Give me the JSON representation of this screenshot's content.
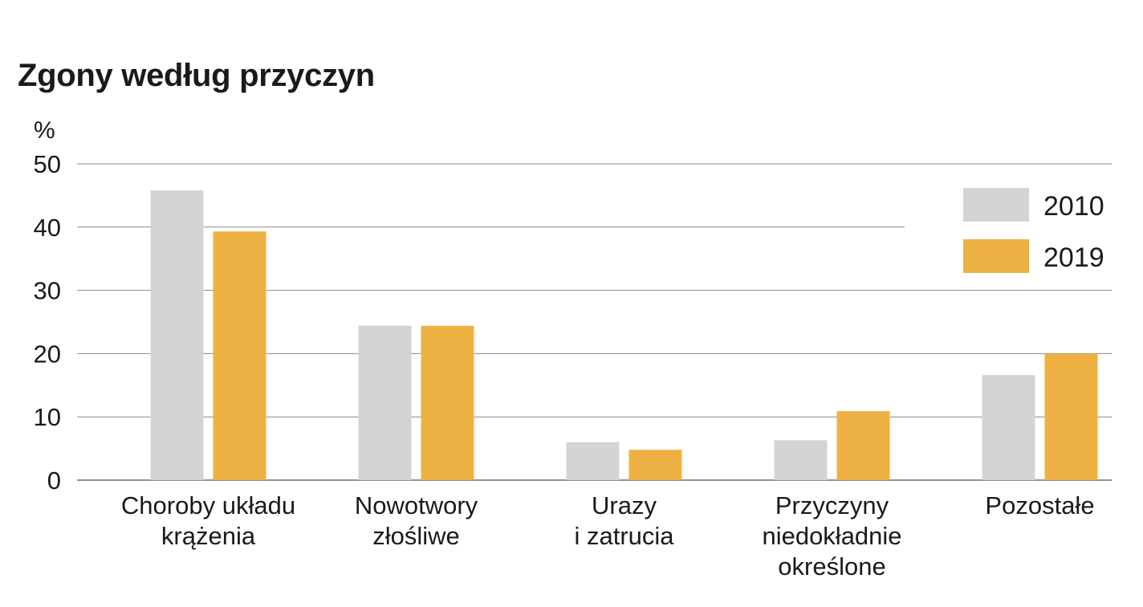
{
  "chart_data": {
    "type": "bar",
    "title": "Zgony według przyczyn",
    "ylabel": "%",
    "xlabel": "",
    "ylim": [
      0,
      50
    ],
    "yticks": [
      0,
      10,
      20,
      30,
      40,
      50
    ],
    "grid": true,
    "legend_position": "top-right",
    "categories": [
      [
        "Choroby układu",
        "krążenia"
      ],
      [
        "Nowotwory",
        "złośliwe"
      ],
      [
        "Urazy",
        "i zatrucia"
      ],
      [
        "Przyczyny",
        "niedokładnie",
        "określone"
      ],
      [
        "Pozostałe"
      ]
    ],
    "series": [
      {
        "name": "2010",
        "color": "#d4d4d6",
        "values": [
          45.8,
          24.4,
          6.0,
          6.3,
          16.6
        ]
      },
      {
        "name": "2019",
        "color": "#eeb143",
        "values": [
          39.3,
          24.4,
          4.8,
          10.9,
          20.0
        ]
      }
    ]
  }
}
